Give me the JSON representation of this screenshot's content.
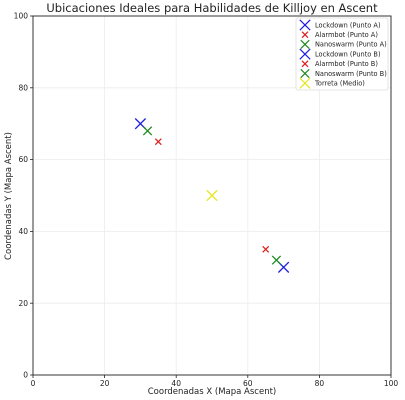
{
  "chart_data": {
    "type": "scatter",
    "title": "Ubicaciones Ideales para Habilidades de Killjoy en Ascent",
    "xlabel": "Coordenadas X (Mapa Ascent)",
    "ylabel": "Coordenadas Y (Mapa Ascent)",
    "xlim": [
      0,
      100
    ],
    "ylim": [
      0,
      100
    ],
    "xticks": [
      0,
      20,
      40,
      60,
      80,
      100
    ],
    "yticks": [
      0,
      20,
      40,
      60,
      80,
      100
    ],
    "grid": true,
    "legend_position": "top-right",
    "marker": "x",
    "series": [
      {
        "name": "Lockdown (Punto A)",
        "color": "#1f1fdd",
        "x": [
          30
        ],
        "y": [
          70
        ],
        "marker_size": "large"
      },
      {
        "name": "Alarmbot (Punto A)",
        "color": "#dd2020",
        "x": [
          35
        ],
        "y": [
          65
        ],
        "marker_size": "small"
      },
      {
        "name": "Nanoswarm (Punto A)",
        "color": "#1f8a1f",
        "x": [
          32
        ],
        "y": [
          68
        ],
        "marker_size": "medium"
      },
      {
        "name": "Lockdown (Punto B)",
        "color": "#1f1fdd",
        "x": [
          70
        ],
        "y": [
          30
        ],
        "marker_size": "large"
      },
      {
        "name": "Alarmbot (Punto B)",
        "color": "#dd2020",
        "x": [
          65
        ],
        "y": [
          35
        ],
        "marker_size": "small"
      },
      {
        "name": "Nanoswarm (Punto B)",
        "color": "#1f8a1f",
        "x": [
          68
        ],
        "y": [
          32
        ],
        "marker_size": "medium"
      },
      {
        "name": "Torreta (Medio)",
        "color": "#e5e51a",
        "x": [
          50
        ],
        "y": [
          50
        ],
        "marker_size": "large"
      }
    ]
  }
}
